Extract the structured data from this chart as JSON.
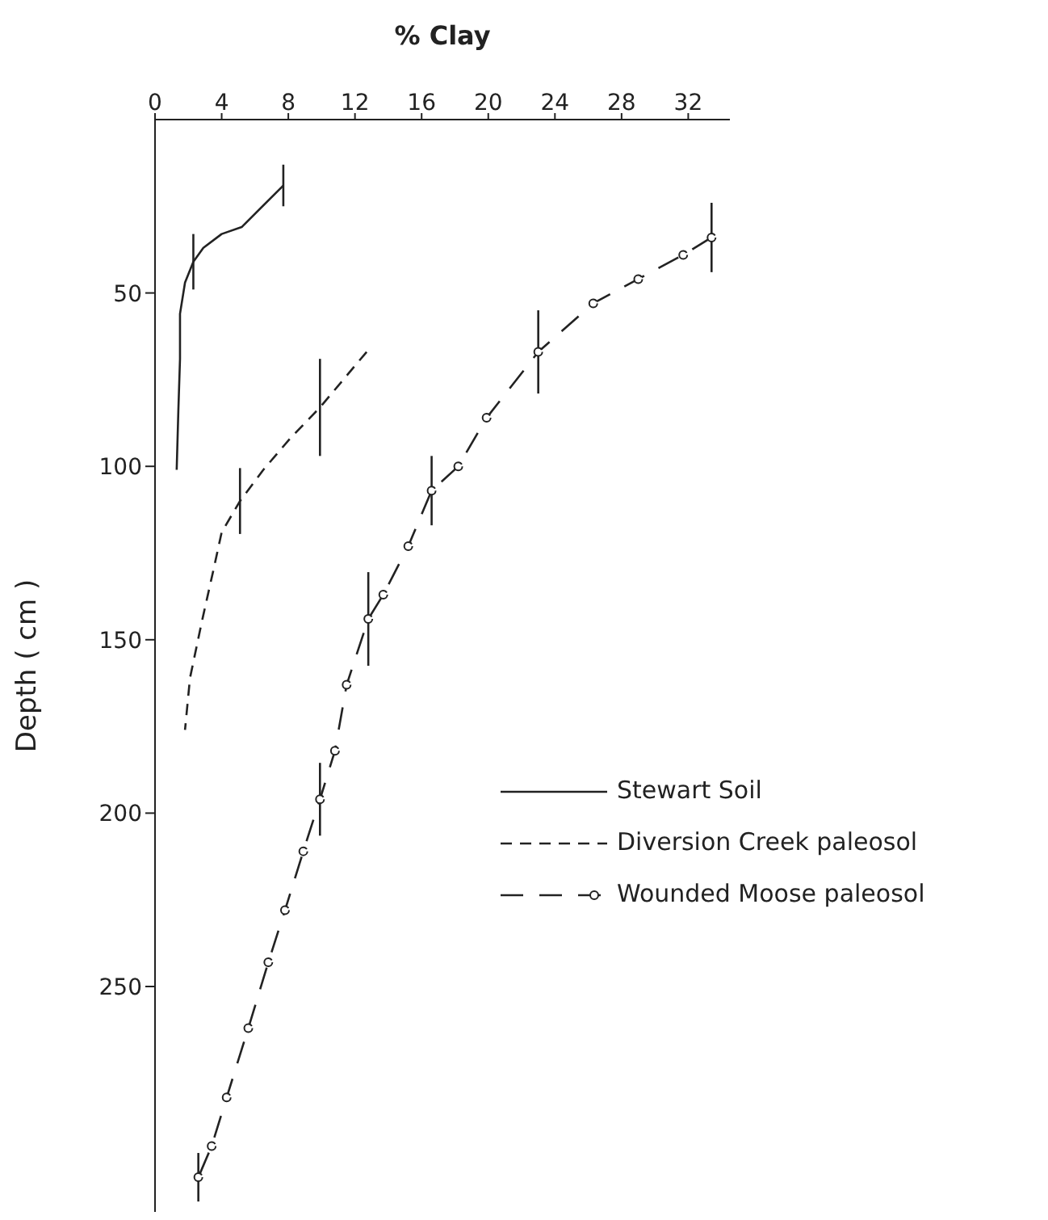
{
  "chart_data": {
    "type": "line",
    "xlabel": "% Clay",
    "ylabel": "Depth ( cm )",
    "xlim": [
      0,
      34.5
    ],
    "xticks": [
      0,
      4,
      8,
      12,
      16,
      20,
      24,
      28,
      32
    ],
    "ylim": [
      315,
      0
    ],
    "yticks": [
      50,
      100,
      150,
      200,
      250
    ],
    "legend": "right",
    "series": [
      {
        "name": "Stewart Soil",
        "color": "#222222",
        "line_style": "solid",
        "marker": "none",
        "x": [
          7.7,
          5.2,
          4.0,
          2.9,
          2.3,
          1.8,
          1.5,
          1.5,
          1.4,
          1.3
        ],
        "values": [
          19,
          31,
          33,
          37,
          41,
          47,
          56,
          69,
          84,
          101
        ],
        "errors": [
          6,
          null,
          null,
          null,
          8,
          null,
          null,
          null,
          null,
          null
        ]
      },
      {
        "name": "Diversion Creek paleosol",
        "color": "#222222",
        "line_style": "dashed",
        "marker": "none",
        "x": [
          12.7,
          9.9,
          8.1,
          6.5,
          5.1,
          4.0,
          3.5,
          2.8,
          2.1,
          1.8
        ],
        "values": [
          67,
          83,
          92,
          101,
          110,
          119,
          130,
          145,
          161,
          176
        ],
        "errors": [
          null,
          14,
          null,
          null,
          9.5,
          null,
          null,
          null,
          null,
          null
        ]
      },
      {
        "name": "Wounded Moose paleosol",
        "color": "#222222",
        "line_style": "dashed",
        "marker": "circle",
        "x": [
          33.4,
          31.7,
          29.0,
          26.3,
          23.0,
          19.9,
          18.2,
          16.6,
          15.2,
          13.7,
          12.8,
          11.5,
          10.8,
          9.9,
          8.9,
          7.8,
          6.8,
          5.6,
          4.3,
          3.4,
          2.6
        ],
        "values": [
          34,
          39,
          46,
          53,
          67,
          86,
          100,
          107,
          123,
          137,
          144,
          163,
          182,
          196,
          211,
          228,
          243,
          262,
          282,
          296,
          305
        ],
        "errors": [
          10,
          null,
          null,
          null,
          12,
          null,
          null,
          10,
          null,
          null,
          13.5,
          null,
          null,
          10.5,
          null,
          null,
          null,
          null,
          null,
          null,
          7
        ]
      }
    ]
  }
}
